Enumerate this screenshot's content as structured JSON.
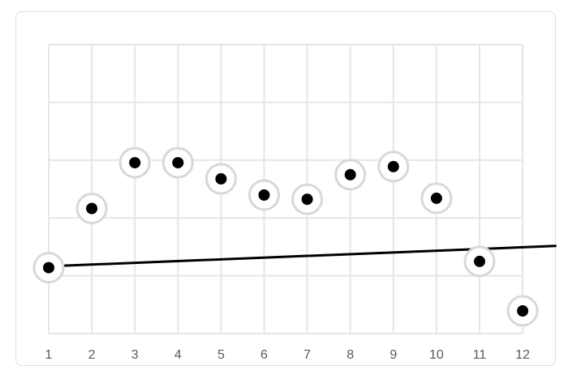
{
  "chart_data": {
    "type": "scatter",
    "categories": [
      "1",
      "2",
      "3",
      "4",
      "5",
      "6",
      "7",
      "8",
      "9",
      "10",
      "11",
      "12"
    ],
    "series": [
      {
        "values": [
          28.5,
          54.1,
          73.9,
          73.9,
          66.9,
          59.9,
          58.1,
          68.7,
          72.2,
          58.5,
          31.2,
          9.8
        ]
      }
    ],
    "trendline": {
      "type": "linear",
      "start": {
        "x": 1,
        "y": 29.1
      },
      "end": {
        "x": 12.76,
        "y": 37.9
      }
    },
    "ylim": [
      0,
      125
    ],
    "grid": true,
    "point_fill": "#000000",
    "point_halo": "#d8d8d8",
    "line_color": "#000000",
    "grid_color": "#e6e6e6"
  }
}
